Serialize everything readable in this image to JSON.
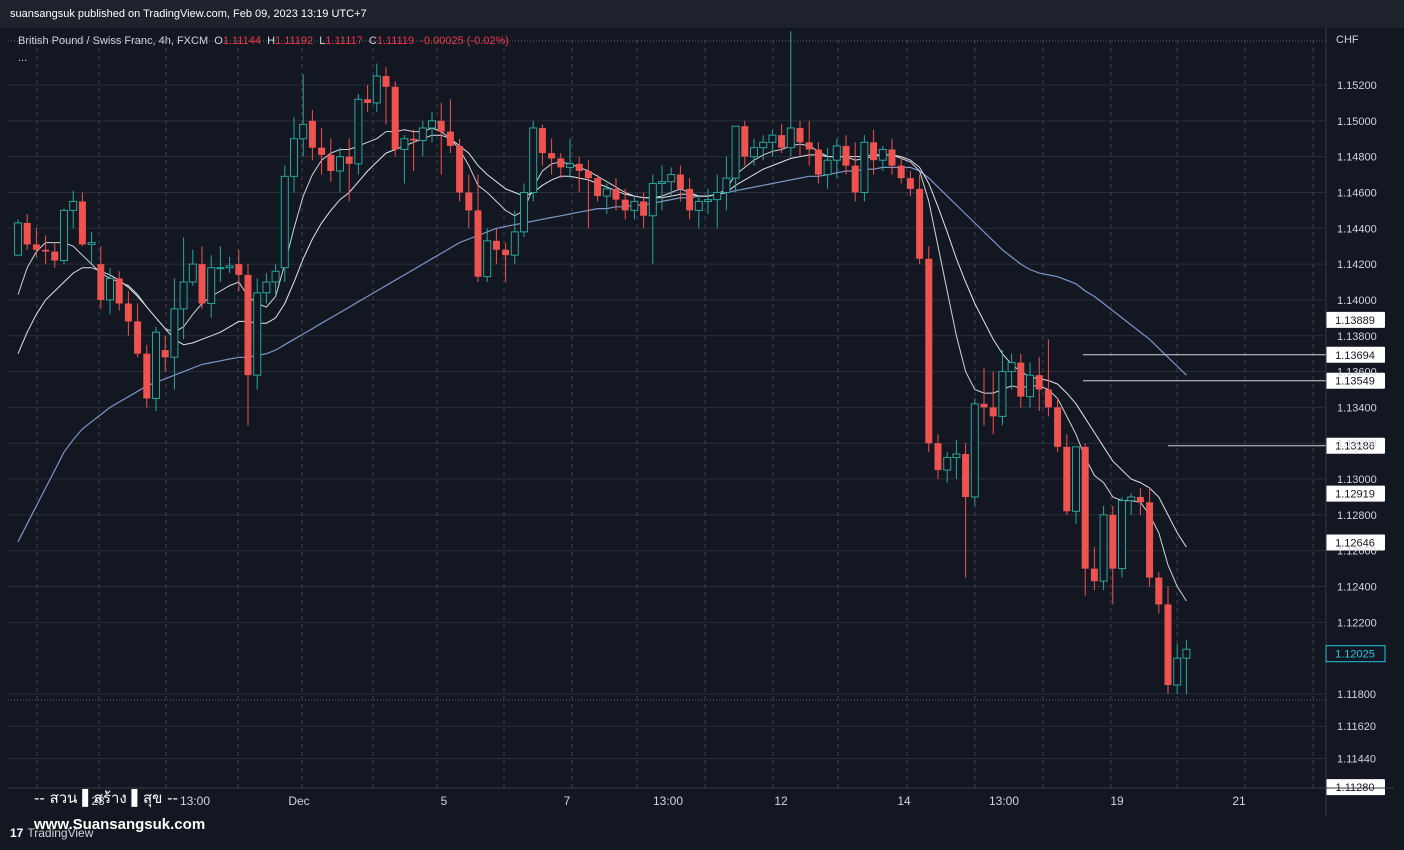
{
  "publisher_text": "suansangsuk published on TradingView.com, Feb 09, 2023 13:19 UTC+7",
  "legend": {
    "symbol": "British Pound / Swiss Franc, 4h, FXCM",
    "o_label": "O",
    "o": "1.11144",
    "h_label": "H",
    "h": "1.11192",
    "l_label": "L",
    "l": "1.11117",
    "c_label": "C",
    "c": "1.11119",
    "change": "-0.00025 (-0.02%)",
    "more": "..."
  },
  "currency": "CHF",
  "watermark": {
    "line1": "--  สวน ▌สร้าง ▌สุข  --",
    "line2": "www.Suansangsuk.com"
  },
  "tv_logo": {
    "mark": "17",
    "text": "TradingView"
  },
  "colors": {
    "background": "#131722",
    "up": "#26a69a",
    "down": "#ef5350",
    "grid": "#2a2e39",
    "ma_fast": "#d1d4dc",
    "ma_mid": "#e0e3eb",
    "ma_slow": "#7e95c8",
    "hline": "#d1d4dc",
    "last_price": "#26c6da"
  },
  "chart_data": {
    "type": "candlestick",
    "title": "British Pound / Swiss Franc, 4h, FXCM",
    "ylim": [
      1.1128,
      1.154
    ],
    "y_ticks": [
      1.152,
      1.15,
      1.148,
      1.146,
      1.144,
      1.142,
      1.14,
      1.138,
      1.136,
      1.134,
      1.132,
      1.13,
      1.128,
      1.126,
      1.124,
      1.122,
      1.118,
      1.1162,
      1.1144
    ],
    "y_tick_labels": [
      "1.15200",
      "1.15000",
      "1.14800",
      "1.14600",
      "1.14400",
      "1.14200",
      "1.14000",
      "1.13800",
      "1.13600",
      "1.13400",
      "1.13200",
      "1.13000",
      "1.12800",
      "1.12600",
      "1.12400",
      "1.12200",
      "1.11800",
      "1.11620",
      "1.11440"
    ],
    "x_labels": [
      "28",
      "13:00",
      "Dec",
      "5",
      "7",
      "13:00",
      "12",
      "14",
      "13:00",
      "19",
      "21"
    ],
    "grid": true,
    "horizontal_levels": [
      1.13889,
      1.13694,
      1.13549,
      1.13186,
      1.12919,
      1.12646,
      1.1128
    ],
    "level_labels": [
      "1.13889",
      "1.13694",
      "1.13549",
      "1.13186",
      "1.12919",
      "1.12646",
      "1.11280"
    ],
    "last_price": 1.12025,
    "last_price_label": "1.12025",
    "candles": [
      [
        1.1425,
        1.1445,
        1.1425,
        1.1443
      ],
      [
        1.1443,
        1.1448,
        1.1428,
        1.1431
      ],
      [
        1.1431,
        1.144,
        1.1424,
        1.1428
      ],
      [
        1.1428,
        1.1436,
        1.142,
        1.1427
      ],
      [
        1.1427,
        1.1432,
        1.1418,
        1.1422
      ],
      [
        1.1422,
        1.1451,
        1.142,
        1.145
      ],
      [
        1.145,
        1.1461,
        1.144,
        1.1455
      ],
      [
        1.1455,
        1.146,
        1.143,
        1.1431
      ],
      [
        1.1431,
        1.1438,
        1.142,
        1.1432
      ],
      [
        1.142,
        1.143,
        1.1395,
        1.14
      ],
      [
        1.14,
        1.1418,
        1.1392,
        1.1412
      ],
      [
        1.1412,
        1.1416,
        1.1394,
        1.1398
      ],
      [
        1.1398,
        1.1405,
        1.138,
        1.1388
      ],
      [
        1.1388,
        1.1398,
        1.1368,
        1.137
      ],
      [
        1.137,
        1.1375,
        1.134,
        1.1345
      ],
      [
        1.1345,
        1.1385,
        1.1338,
        1.1382
      ],
      [
        1.1372,
        1.138,
        1.136,
        1.1368
      ],
      [
        1.1368,
        1.1412,
        1.135,
        1.1395
      ],
      [
        1.1395,
        1.1435,
        1.1378,
        1.141
      ],
      [
        1.141,
        1.1428,
        1.1408,
        1.142
      ],
      [
        1.142,
        1.143,
        1.1395,
        1.1398
      ],
      [
        1.1398,
        1.1425,
        1.139,
        1.1418
      ],
      [
        1.1418,
        1.143,
        1.141,
        1.1418
      ],
      [
        1.1418,
        1.1424,
        1.1415,
        1.1419
      ],
      [
        1.142,
        1.1428,
        1.1405,
        1.1414
      ],
      [
        1.1414,
        1.142,
        1.133,
        1.1358
      ],
      [
        1.1358,
        1.1412,
        1.135,
        1.1404
      ],
      [
        1.1404,
        1.1415,
        1.1398,
        1.141
      ],
      [
        1.141,
        1.142,
        1.1402,
        1.1416
      ],
      [
        1.1418,
        1.1475,
        1.141,
        1.1469
      ],
      [
        1.1469,
        1.1502,
        1.146,
        1.149
      ],
      [
        1.149,
        1.1526,
        1.148,
        1.1498
      ],
      [
        1.15,
        1.1506,
        1.1478,
        1.1485
      ],
      [
        1.1485,
        1.1496,
        1.147,
        1.1481
      ],
      [
        1.1481,
        1.149,
        1.1466,
        1.1472
      ],
      [
        1.1472,
        1.1485,
        1.146,
        1.148
      ],
      [
        1.148,
        1.149,
        1.1455,
        1.1476
      ],
      [
        1.1476,
        1.1515,
        1.147,
        1.1512
      ],
      [
        1.1512,
        1.152,
        1.1505,
        1.151
      ],
      [
        1.151,
        1.1532,
        1.1505,
        1.1525
      ],
      [
        1.1525,
        1.153,
        1.1498,
        1.1519
      ],
      [
        1.1519,
        1.1522,
        1.148,
        1.1484
      ],
      [
        1.1484,
        1.1492,
        1.1465,
        1.149
      ],
      [
        1.149,
        1.1495,
        1.1472,
        1.1489
      ],
      [
        1.1489,
        1.15,
        1.148,
        1.1496
      ],
      [
        1.1496,
        1.1505,
        1.1488,
        1.15
      ],
      [
        1.15,
        1.151,
        1.147,
        1.1494
      ],
      [
        1.1494,
        1.1512,
        1.1482,
        1.1486
      ],
      [
        1.1486,
        1.149,
        1.1455,
        1.146
      ],
      [
        1.146,
        1.147,
        1.144,
        1.145
      ],
      [
        1.145,
        1.147,
        1.141,
        1.1413
      ],
      [
        1.1413,
        1.144,
        1.141,
        1.1433
      ],
      [
        1.1433,
        1.144,
        1.142,
        1.1428
      ],
      [
        1.1428,
        1.1432,
        1.141,
        1.1425
      ],
      [
        1.1425,
        1.145,
        1.142,
        1.1438
      ],
      [
        1.1438,
        1.1465,
        1.1435,
        1.146
      ],
      [
        1.146,
        1.15,
        1.1455,
        1.1496
      ],
      [
        1.1496,
        1.1498,
        1.1475,
        1.1482
      ],
      [
        1.1482,
        1.149,
        1.147,
        1.1479
      ],
      [
        1.1479,
        1.1482,
        1.1468,
        1.1474
      ],
      [
        1.1474,
        1.149,
        1.1468,
        1.1476
      ],
      [
        1.1476,
        1.148,
        1.146,
        1.1472
      ],
      [
        1.1472,
        1.1478,
        1.144,
        1.1468
      ],
      [
        1.1468,
        1.147,
        1.1455,
        1.1458
      ],
      [
        1.1458,
        1.1465,
        1.1448,
        1.1462
      ],
      [
        1.1462,
        1.1468,
        1.145,
        1.1456
      ],
      [
        1.1456,
        1.1462,
        1.1445,
        1.145
      ],
      [
        1.145,
        1.1458,
        1.1445,
        1.1455
      ],
      [
        1.1455,
        1.146,
        1.144,
        1.1447
      ],
      [
        1.1447,
        1.147,
        1.142,
        1.1465
      ],
      [
        1.1465,
        1.1475,
        1.145,
        1.1466
      ],
      [
        1.1466,
        1.1474,
        1.1458,
        1.147
      ],
      [
        1.147,
        1.1475,
        1.1455,
        1.1462
      ],
      [
        1.1462,
        1.1468,
        1.1445,
        1.145
      ],
      [
        1.145,
        1.1458,
        1.144,
        1.1455
      ],
      [
        1.1455,
        1.1462,
        1.1448,
        1.1456
      ],
      [
        1.1456,
        1.147,
        1.144,
        1.146
      ],
      [
        1.146,
        1.148,
        1.145,
        1.1468
      ],
      [
        1.1468,
        1.1495,
        1.146,
        1.1497
      ],
      [
        1.1497,
        1.15,
        1.1475,
        1.148
      ],
      [
        1.148,
        1.149,
        1.1475,
        1.1485
      ],
      [
        1.1485,
        1.1492,
        1.1478,
        1.1488
      ],
      [
        1.1488,
        1.1495,
        1.148,
        1.1492
      ],
      [
        1.1492,
        1.1498,
        1.1482,
        1.1485
      ],
      [
        1.1485,
        1.155,
        1.148,
        1.1496
      ],
      [
        1.1496,
        1.15,
        1.148,
        1.1488
      ],
      [
        1.1488,
        1.15,
        1.1475,
        1.1484
      ],
      [
        1.1484,
        1.1488,
        1.1465,
        1.147
      ],
      [
        1.147,
        1.1485,
        1.1462,
        1.1478
      ],
      [
        1.1478,
        1.149,
        1.1468,
        1.1486
      ],
      [
        1.1486,
        1.1492,
        1.147,
        1.1475
      ],
      [
        1.1475,
        1.1488,
        1.1455,
        1.146
      ],
      [
        1.146,
        1.1492,
        1.1455,
        1.1488
      ],
      [
        1.1488,
        1.1495,
        1.147,
        1.1478
      ],
      [
        1.1478,
        1.1486,
        1.1472,
        1.1484
      ],
      [
        1.1484,
        1.149,
        1.147,
        1.1475
      ],
      [
        1.1475,
        1.148,
        1.1465,
        1.1468
      ],
      [
        1.1468,
        1.1472,
        1.1458,
        1.1462
      ],
      [
        1.1462,
        1.147,
        1.142,
        1.1423
      ],
      [
        1.1423,
        1.143,
        1.1315,
        1.132
      ],
      [
        1.132,
        1.1325,
        1.13,
        1.1305
      ],
      [
        1.1305,
        1.1315,
        1.1298,
        1.1312
      ],
      [
        1.1312,
        1.1322,
        1.13,
        1.1314
      ],
      [
        1.1314,
        1.132,
        1.1245,
        1.129
      ],
      [
        1.129,
        1.1345,
        1.1285,
        1.1342
      ],
      [
        1.1342,
        1.1362,
        1.133,
        1.134
      ],
      [
        1.134,
        1.136,
        1.1325,
        1.1335
      ],
      [
        1.1335,
        1.1372,
        1.133,
        1.136
      ],
      [
        1.136,
        1.137,
        1.135,
        1.1365
      ],
      [
        1.1365,
        1.137,
        1.134,
        1.1346
      ],
      [
        1.1346,
        1.1365,
        1.134,
        1.1358
      ],
      [
        1.1358,
        1.1368,
        1.1338,
        1.135
      ],
      [
        1.135,
        1.1378,
        1.1335,
        1.134
      ],
      [
        1.134,
        1.1345,
        1.1315,
        1.1318
      ],
      [
        1.1318,
        1.1325,
        1.128,
        1.1282
      ],
      [
        1.1282,
        1.1315,
        1.1275,
        1.1318
      ],
      [
        1.1318,
        1.132,
        1.1235,
        1.125
      ],
      [
        1.125,
        1.1262,
        1.1238,
        1.1243
      ],
      [
        1.1243,
        1.1285,
        1.1238,
        1.128
      ],
      [
        1.128,
        1.1285,
        1.123,
        1.125
      ],
      [
        1.125,
        1.129,
        1.1245,
        1.1288
      ],
      [
        1.1288,
        1.1292,
        1.128,
        1.129
      ],
      [
        1.129,
        1.1295,
        1.128,
        1.1287
      ],
      [
        1.1287,
        1.1295,
        1.124,
        1.1245
      ],
      [
        1.1245,
        1.1248,
        1.1225,
        1.123
      ],
      [
        1.123,
        1.124,
        1.118,
        1.1185
      ],
      [
        1.1185,
        1.1208,
        1.118,
        1.12
      ],
      [
        1.12,
        1.121,
        1.118,
        1.1205
      ]
    ],
    "ma_fast": [
      1.1403,
      1.1418,
      1.1427,
      1.1432,
      1.1432,
      1.1432,
      1.143,
      1.1425,
      1.142,
      1.1415,
      1.1412,
      1.141,
      1.1408,
      1.1403,
      1.1396,
      1.139,
      1.1384,
      1.1382,
      1.1385,
      1.1392,
      1.1398,
      1.1402,
      1.1405,
      1.1408,
      1.141,
      1.1402,
      1.1398,
      1.1396,
      1.1402,
      1.142,
      1.144,
      1.1458,
      1.147,
      1.1478,
      1.1482,
      1.1484,
      1.1484,
      1.1486,
      1.1488,
      1.149,
      1.1494,
      1.1494,
      1.1495,
      1.1494,
      1.1494,
      1.1496,
      1.1494,
      1.149,
      1.1484,
      1.1475,
      1.1464,
      1.146,
      1.1455,
      1.145,
      1.1447,
      1.145,
      1.1463,
      1.1472,
      1.1476,
      1.1477,
      1.1476,
      1.1474,
      1.1472,
      1.1469,
      1.1466,
      1.1463,
      1.146,
      1.1458,
      1.1457,
      1.1457,
      1.1458,
      1.146,
      1.1462,
      1.146,
      1.1458,
      1.1458,
      1.1459,
      1.1462,
      1.147,
      1.1474,
      1.1478,
      1.1481,
      1.1483,
      1.1484,
      1.1486,
      1.1487,
      1.1486,
      1.1483,
      1.148,
      1.148,
      1.148,
      1.1478,
      1.1479,
      1.148,
      1.1481,
      1.1481,
      1.1479,
      1.1477,
      1.1472,
      1.1455,
      1.143,
      1.1405,
      1.138,
      1.136,
      1.135,
      1.1348,
      1.1348,
      1.135,
      1.1352,
      1.1351,
      1.1352,
      1.1352,
      1.135,
      1.1345,
      1.1335,
      1.1325,
      1.1312,
      1.1302,
      1.1298,
      1.129,
      1.1288,
      1.1288,
      1.1287,
      1.128,
      1.127,
      1.1252,
      1.124,
      1.1232
    ],
    "ma_mid": [
      1.137,
      1.1382,
      1.1392,
      1.14,
      1.1405,
      1.141,
      1.1415,
      1.1418,
      1.1418,
      1.1416,
      1.1414,
      1.1411,
      1.1407,
      1.1402,
      1.1396,
      1.139,
      1.1384,
      1.1378,
      1.1375,
      1.1376,
      1.1378,
      1.138,
      1.1382,
      1.1385,
      1.1388,
      1.1388,
      1.1387,
      1.1387,
      1.139,
      1.1398,
      1.141,
      1.1423,
      1.1434,
      1.1443,
      1.145,
      1.1456,
      1.146,
      1.1466,
      1.1472,
      1.1477,
      1.1482,
      1.1484,
      1.1486,
      1.1488,
      1.149,
      1.1492,
      1.1492,
      1.149,
      1.1486,
      1.1482,
      1.1475,
      1.147,
      1.1466,
      1.1462,
      1.146,
      1.1458,
      1.146,
      1.1464,
      1.1467,
      1.1469,
      1.1469,
      1.1468,
      1.1467,
      1.1465,
      1.1463,
      1.1461,
      1.1459,
      1.1458,
      1.1457,
      1.1457,
      1.1457,
      1.1458,
      1.1459,
      1.1459,
      1.1458,
      1.1458,
      1.1459,
      1.146,
      1.1464,
      1.1467,
      1.147,
      1.1473,
      1.1475,
      1.1477,
      1.1479,
      1.148,
      1.1481,
      1.1481,
      1.148,
      1.148,
      1.148,
      1.148,
      1.148,
      1.1481,
      1.1481,
      1.1481,
      1.148,
      1.1478,
      1.1474,
      1.1465,
      1.1452,
      1.1438,
      1.1423,
      1.141,
      1.1398,
      1.1388,
      1.1378,
      1.137,
      1.1364,
      1.136,
      1.1357,
      1.1356,
      1.1355,
      1.1353,
      1.1348,
      1.1342,
      1.1334,
      1.1326,
      1.1318,
      1.131,
      1.1305,
      1.13,
      1.1298,
      1.1295,
      1.129,
      1.128,
      1.127,
      1.1262
    ],
    "ma_slow": [
      1.1265,
      1.1275,
      1.1285,
      1.1295,
      1.1305,
      1.1315,
      1.1322,
      1.1328,
      1.1332,
      1.1336,
      1.134,
      1.1343,
      1.1346,
      1.1349,
      1.1352,
      1.1354,
      1.1356,
      1.1358,
      1.136,
      1.1362,
      1.1364,
      1.1365,
      1.1366,
      1.1367,
      1.1368,
      1.1368,
      1.1369,
      1.137,
      1.1372,
      1.1375,
      1.1378,
      1.1381,
      1.1384,
      1.1387,
      1.139,
      1.1393,
      1.1396,
      1.1399,
      1.1402,
      1.1405,
      1.1408,
      1.1411,
      1.1414,
      1.1417,
      1.142,
      1.1423,
      1.1426,
      1.1429,
      1.1432,
      1.1434,
      1.1436,
      1.1438,
      1.144,
      1.1441,
      1.1442,
      1.1443,
      1.1444,
      1.1445,
      1.1446,
      1.1447,
      1.1448,
      1.1449,
      1.145,
      1.1451,
      1.1451,
      1.1452,
      1.1452,
      1.1453,
      1.1453,
      1.1454,
      1.1455,
      1.1456,
      1.1457,
      1.1457,
      1.1458,
      1.1458,
      1.1459,
      1.146,
      1.1461,
      1.1462,
      1.1463,
      1.1464,
      1.1465,
      1.1466,
      1.1467,
      1.1468,
      1.1469,
      1.1469,
      1.147,
      1.1471,
      1.1472,
      1.1472,
      1.1473,
      1.1473,
      1.1474,
      1.1474,
      1.1474,
      1.1474,
      1.1472,
      1.1468,
      1.1463,
      1.1458,
      1.1453,
      1.1448,
      1.1443,
      1.1438,
      1.1433,
      1.1428,
      1.1424,
      1.142,
      1.1417,
      1.1415,
      1.1414,
      1.1413,
      1.1411,
      1.1409,
      1.1405,
      1.1402,
      1.1398,
      1.1394,
      1.139,
      1.1386,
      1.1382,
      1.1378,
      1.1373,
      1.1368,
      1.1363,
      1.1358
    ]
  }
}
